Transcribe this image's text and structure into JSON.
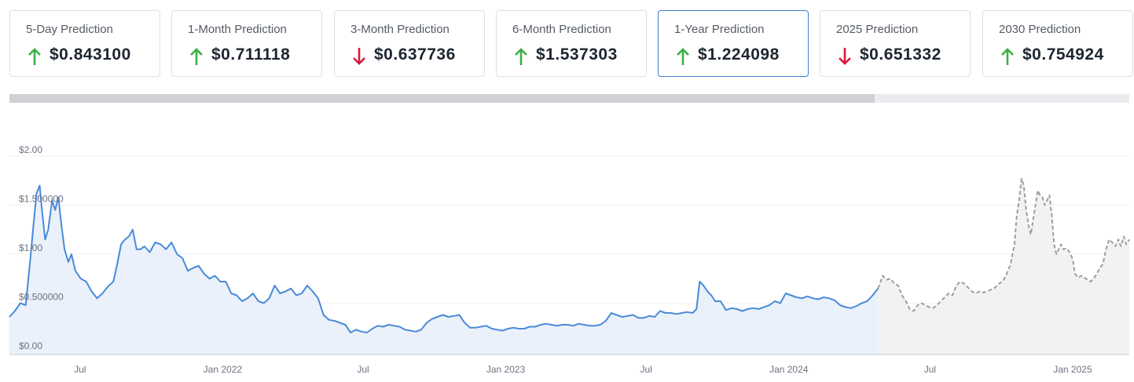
{
  "cards": [
    {
      "title": "5-Day Prediction",
      "value": "$0.843100",
      "direction": "up"
    },
    {
      "title": "1-Month Prediction",
      "value": "$0.711118",
      "direction": "up"
    },
    {
      "title": "3-Month Prediction",
      "value": "$0.637736",
      "direction": "down"
    },
    {
      "title": "6-Month Prediction",
      "value": "$1.537303",
      "direction": "up"
    },
    {
      "title": "1-Year Prediction",
      "value": "$1.224098",
      "direction": "up",
      "selected": true
    },
    {
      "title": "2025 Prediction",
      "value": "$0.651332",
      "direction": "down"
    },
    {
      "title": "2030 Prediction",
      "value": "$0.754924",
      "direction": "up"
    }
  ],
  "colors": {
    "up": "#3cb043",
    "down": "#d9183b",
    "historical_line": "#4a8ad8",
    "historical_fill": "#eaf1fb",
    "prediction_line": "#9e9e9e",
    "prediction_fill": "#f2f2f2",
    "selected_border": "#3f7fc9"
  },
  "chart_data": {
    "type": "line",
    "y_tick_labels": [
      "$0.00",
      "$0.500000",
      "$1.00",
      "$1.500000",
      "$2.00"
    ],
    "y_tick_values": [
      0,
      0.5,
      1.0,
      1.5,
      2.0
    ],
    "ylim": [
      0,
      2.0
    ],
    "xlim": [
      "2021-04-01",
      "2025-03-15"
    ],
    "x_ticks": [
      {
        "label": "Jul",
        "date": "2021-07-01"
      },
      {
        "label": "Jan 2022",
        "date": "2022-01-01"
      },
      {
        "label": "Jul",
        "date": "2022-07-01"
      },
      {
        "label": "Jan 2023",
        "date": "2023-01-01"
      },
      {
        "label": "Jul",
        "date": "2023-07-01"
      },
      {
        "label": "Jan 2024",
        "date": "2024-01-01"
      },
      {
        "label": "Jul",
        "date": "2024-07-01"
      },
      {
        "label": "Jan 2025",
        "date": "2025-01-01"
      }
    ],
    "grid": true,
    "series": [
      {
        "kind": "historical",
        "points": [
          [
            "2021-04-01",
            0.36
          ],
          [
            "2021-04-08",
            0.42
          ],
          [
            "2021-04-15",
            0.5
          ],
          [
            "2021-04-22",
            0.48
          ],
          [
            "2021-04-28",
            0.95
          ],
          [
            "2021-05-02",
            1.3
          ],
          [
            "2021-05-06",
            1.62
          ],
          [
            "2021-05-10",
            1.7
          ],
          [
            "2021-05-13",
            1.45
          ],
          [
            "2021-05-17",
            1.15
          ],
          [
            "2021-05-21",
            1.25
          ],
          [
            "2021-05-26",
            1.55
          ],
          [
            "2021-05-30",
            1.45
          ],
          [
            "2021-06-03",
            1.58
          ],
          [
            "2021-06-07",
            1.3
          ],
          [
            "2021-06-11",
            1.05
          ],
          [
            "2021-06-16",
            0.92
          ],
          [
            "2021-06-20",
            1.0
          ],
          [
            "2021-06-25",
            0.83
          ],
          [
            "2021-07-02",
            0.75
          ],
          [
            "2021-07-09",
            0.72
          ],
          [
            "2021-07-16",
            0.62
          ],
          [
            "2021-07-23",
            0.55
          ],
          [
            "2021-07-30",
            0.6
          ],
          [
            "2021-08-06",
            0.67
          ],
          [
            "2021-08-13",
            0.72
          ],
          [
            "2021-08-18",
            0.9
          ],
          [
            "2021-08-23",
            1.1
          ],
          [
            "2021-08-28",
            1.15
          ],
          [
            "2021-09-02",
            1.18
          ],
          [
            "2021-09-07",
            1.25
          ],
          [
            "2021-09-12",
            1.05
          ],
          [
            "2021-09-17",
            1.05
          ],
          [
            "2021-09-22",
            1.08
          ],
          [
            "2021-09-29",
            1.02
          ],
          [
            "2021-10-06",
            1.12
          ],
          [
            "2021-10-13",
            1.1
          ],
          [
            "2021-10-20",
            1.05
          ],
          [
            "2021-10-27",
            1.12
          ],
          [
            "2021-11-03",
            1.0
          ],
          [
            "2021-11-10",
            0.96
          ],
          [
            "2021-11-17",
            0.83
          ],
          [
            "2021-11-24",
            0.86
          ],
          [
            "2021-12-01",
            0.88
          ],
          [
            "2021-12-08",
            0.8
          ],
          [
            "2021-12-15",
            0.75
          ],
          [
            "2021-12-22",
            0.78
          ],
          [
            "2021-12-29",
            0.72
          ],
          [
            "2022-01-05",
            0.72
          ],
          [
            "2022-01-12",
            0.6
          ],
          [
            "2022-01-19",
            0.58
          ],
          [
            "2022-01-26",
            0.52
          ],
          [
            "2022-02-02",
            0.55
          ],
          [
            "2022-02-09",
            0.6
          ],
          [
            "2022-02-16",
            0.52
          ],
          [
            "2022-02-23",
            0.5
          ],
          [
            "2022-03-02",
            0.55
          ],
          [
            "2022-03-09",
            0.68
          ],
          [
            "2022-03-16",
            0.6
          ],
          [
            "2022-03-23",
            0.62
          ],
          [
            "2022-03-30",
            0.65
          ],
          [
            "2022-04-06",
            0.58
          ],
          [
            "2022-04-13",
            0.6
          ],
          [
            "2022-04-20",
            0.68
          ],
          [
            "2022-04-27",
            0.62
          ],
          [
            "2022-05-04",
            0.55
          ],
          [
            "2022-05-11",
            0.38
          ],
          [
            "2022-05-18",
            0.33
          ],
          [
            "2022-05-25",
            0.32
          ],
          [
            "2022-06-01",
            0.3
          ],
          [
            "2022-06-08",
            0.28
          ],
          [
            "2022-06-15",
            0.2
          ],
          [
            "2022-06-22",
            0.23
          ],
          [
            "2022-06-29",
            0.21
          ],
          [
            "2022-07-06",
            0.2
          ],
          [
            "2022-07-13",
            0.24
          ],
          [
            "2022-07-20",
            0.27
          ],
          [
            "2022-07-27",
            0.26
          ],
          [
            "2022-08-03",
            0.28
          ],
          [
            "2022-08-10",
            0.27
          ],
          [
            "2022-08-17",
            0.26
          ],
          [
            "2022-08-24",
            0.23
          ],
          [
            "2022-08-31",
            0.22
          ],
          [
            "2022-09-07",
            0.21
          ],
          [
            "2022-09-14",
            0.23
          ],
          [
            "2022-09-21",
            0.3
          ],
          [
            "2022-09-28",
            0.34
          ],
          [
            "2022-10-05",
            0.36
          ],
          [
            "2022-10-12",
            0.38
          ],
          [
            "2022-10-19",
            0.36
          ],
          [
            "2022-10-26",
            0.37
          ],
          [
            "2022-11-02",
            0.38
          ],
          [
            "2022-11-09",
            0.3
          ],
          [
            "2022-11-16",
            0.25
          ],
          [
            "2022-11-23",
            0.25
          ],
          [
            "2022-11-30",
            0.26
          ],
          [
            "2022-12-07",
            0.27
          ],
          [
            "2022-12-14",
            0.24
          ],
          [
            "2022-12-21",
            0.23
          ],
          [
            "2022-12-28",
            0.22
          ],
          [
            "2023-01-04",
            0.24
          ],
          [
            "2023-01-11",
            0.25
          ],
          [
            "2023-01-18",
            0.24
          ],
          [
            "2023-01-25",
            0.24
          ],
          [
            "2023-02-01",
            0.26
          ],
          [
            "2023-02-08",
            0.26
          ],
          [
            "2023-02-15",
            0.28
          ],
          [
            "2023-02-22",
            0.29
          ],
          [
            "2023-03-01",
            0.28
          ],
          [
            "2023-03-08",
            0.27
          ],
          [
            "2023-03-15",
            0.28
          ],
          [
            "2023-03-22",
            0.28
          ],
          [
            "2023-03-29",
            0.27
          ],
          [
            "2023-04-05",
            0.29
          ],
          [
            "2023-04-12",
            0.28
          ],
          [
            "2023-04-19",
            0.27
          ],
          [
            "2023-04-26",
            0.27
          ],
          [
            "2023-05-03",
            0.28
          ],
          [
            "2023-05-10",
            0.32
          ],
          [
            "2023-05-17",
            0.4
          ],
          [
            "2023-05-24",
            0.38
          ],
          [
            "2023-05-31",
            0.36
          ],
          [
            "2023-06-07",
            0.37
          ],
          [
            "2023-06-14",
            0.38
          ],
          [
            "2023-06-21",
            0.35
          ],
          [
            "2023-06-28",
            0.35
          ],
          [
            "2023-07-05",
            0.37
          ],
          [
            "2023-07-12",
            0.36
          ],
          [
            "2023-07-19",
            0.42
          ],
          [
            "2023-07-26",
            0.4
          ],
          [
            "2023-08-02",
            0.4
          ],
          [
            "2023-08-09",
            0.39
          ],
          [
            "2023-08-16",
            0.4
          ],
          [
            "2023-08-23",
            0.41
          ],
          [
            "2023-08-30",
            0.4
          ],
          [
            "2023-09-04",
            0.44
          ],
          [
            "2023-09-08",
            0.72
          ],
          [
            "2023-09-13",
            0.68
          ],
          [
            "2023-09-18",
            0.62
          ],
          [
            "2023-09-23",
            0.58
          ],
          [
            "2023-09-28",
            0.52
          ],
          [
            "2023-10-05",
            0.52
          ],
          [
            "2023-10-12",
            0.43
          ],
          [
            "2023-10-19",
            0.45
          ],
          [
            "2023-10-26",
            0.44
          ],
          [
            "2023-11-02",
            0.42
          ],
          [
            "2023-11-09",
            0.44
          ],
          [
            "2023-11-16",
            0.45
          ],
          [
            "2023-11-23",
            0.44
          ],
          [
            "2023-11-30",
            0.46
          ],
          [
            "2023-12-07",
            0.48
          ],
          [
            "2023-12-14",
            0.52
          ],
          [
            "2023-12-21",
            0.5
          ],
          [
            "2023-12-28",
            0.6
          ],
          [
            "2024-01-04",
            0.58
          ],
          [
            "2024-01-11",
            0.56
          ],
          [
            "2024-01-18",
            0.55
          ],
          [
            "2024-01-25",
            0.57
          ],
          [
            "2024-02-01",
            0.55
          ],
          [
            "2024-02-08",
            0.54
          ],
          [
            "2024-02-15",
            0.56
          ],
          [
            "2024-02-22",
            0.55
          ],
          [
            "2024-02-29",
            0.53
          ],
          [
            "2024-03-07",
            0.48
          ],
          [
            "2024-03-14",
            0.46
          ],
          [
            "2024-03-21",
            0.45
          ],
          [
            "2024-03-28",
            0.47
          ],
          [
            "2024-04-04",
            0.5
          ],
          [
            "2024-04-11",
            0.52
          ],
          [
            "2024-04-18",
            0.58
          ],
          [
            "2024-04-25",
            0.65
          ]
        ]
      },
      {
        "kind": "prediction",
        "points": [
          [
            "2024-04-25",
            0.65
          ],
          [
            "2024-05-01",
            0.78
          ],
          [
            "2024-05-06",
            0.74
          ],
          [
            "2024-05-11",
            0.75
          ],
          [
            "2024-05-16",
            0.7
          ],
          [
            "2024-05-21",
            0.68
          ],
          [
            "2024-05-26",
            0.58
          ],
          [
            "2024-05-31",
            0.52
          ],
          [
            "2024-06-05",
            0.44
          ],
          [
            "2024-06-10",
            0.42
          ],
          [
            "2024-06-15",
            0.48
          ],
          [
            "2024-06-20",
            0.5
          ],
          [
            "2024-06-25",
            0.48
          ],
          [
            "2024-06-30",
            0.46
          ],
          [
            "2024-07-05",
            0.45
          ],
          [
            "2024-07-10",
            0.48
          ],
          [
            "2024-07-15",
            0.52
          ],
          [
            "2024-07-20",
            0.56
          ],
          [
            "2024-07-25",
            0.6
          ],
          [
            "2024-07-30",
            0.58
          ],
          [
            "2024-08-04",
            0.68
          ],
          [
            "2024-08-09",
            0.72
          ],
          [
            "2024-08-14",
            0.7
          ],
          [
            "2024-08-19",
            0.66
          ],
          [
            "2024-08-24",
            0.62
          ],
          [
            "2024-08-29",
            0.6
          ],
          [
            "2024-09-03",
            0.62
          ],
          [
            "2024-09-08",
            0.61
          ],
          [
            "2024-09-13",
            0.62
          ],
          [
            "2024-09-18",
            0.64
          ],
          [
            "2024-09-23",
            0.66
          ],
          [
            "2024-09-28",
            0.7
          ],
          [
            "2024-10-03",
            0.72
          ],
          [
            "2024-10-08",
            0.8
          ],
          [
            "2024-10-13",
            0.9
          ],
          [
            "2024-10-18",
            1.1
          ],
          [
            "2024-10-21",
            1.4
          ],
          [
            "2024-10-24",
            1.55
          ],
          [
            "2024-10-27",
            1.77
          ],
          [
            "2024-10-30",
            1.7
          ],
          [
            "2024-11-02",
            1.45
          ],
          [
            "2024-11-05",
            1.3
          ],
          [
            "2024-11-08",
            1.2
          ],
          [
            "2024-11-11",
            1.35
          ],
          [
            "2024-11-14",
            1.5
          ],
          [
            "2024-11-17",
            1.65
          ],
          [
            "2024-11-20",
            1.6
          ],
          [
            "2024-11-23",
            1.58
          ],
          [
            "2024-11-26",
            1.5
          ],
          [
            "2024-11-29",
            1.55
          ],
          [
            "2024-12-02",
            1.6
          ],
          [
            "2024-12-05",
            1.4
          ],
          [
            "2024-12-08",
            1.1
          ],
          [
            "2024-12-11",
            1.0
          ],
          [
            "2024-12-14",
            1.05
          ],
          [
            "2024-12-17",
            1.1
          ],
          [
            "2024-12-20",
            1.05
          ],
          [
            "2024-12-24",
            1.06
          ],
          [
            "2024-12-28",
            1.02
          ],
          [
            "2025-01-01",
            0.95
          ],
          [
            "2025-01-04",
            0.8
          ],
          [
            "2025-01-08",
            0.76
          ],
          [
            "2025-01-12",
            0.78
          ],
          [
            "2025-01-16",
            0.76
          ],
          [
            "2025-01-20",
            0.74
          ],
          [
            "2025-01-24",
            0.72
          ],
          [
            "2025-01-28",
            0.75
          ],
          [
            "2025-02-01",
            0.8
          ],
          [
            "2025-02-05",
            0.86
          ],
          [
            "2025-02-09",
            0.9
          ],
          [
            "2025-02-13",
            1.05
          ],
          [
            "2025-02-17",
            1.15
          ],
          [
            "2025-02-21",
            1.12
          ],
          [
            "2025-02-25",
            1.08
          ],
          [
            "2025-03-01",
            1.15
          ],
          [
            "2025-03-04",
            1.08
          ],
          [
            "2025-03-08",
            1.18
          ],
          [
            "2025-03-11",
            1.1
          ],
          [
            "2025-03-15",
            1.15
          ]
        ]
      }
    ]
  }
}
